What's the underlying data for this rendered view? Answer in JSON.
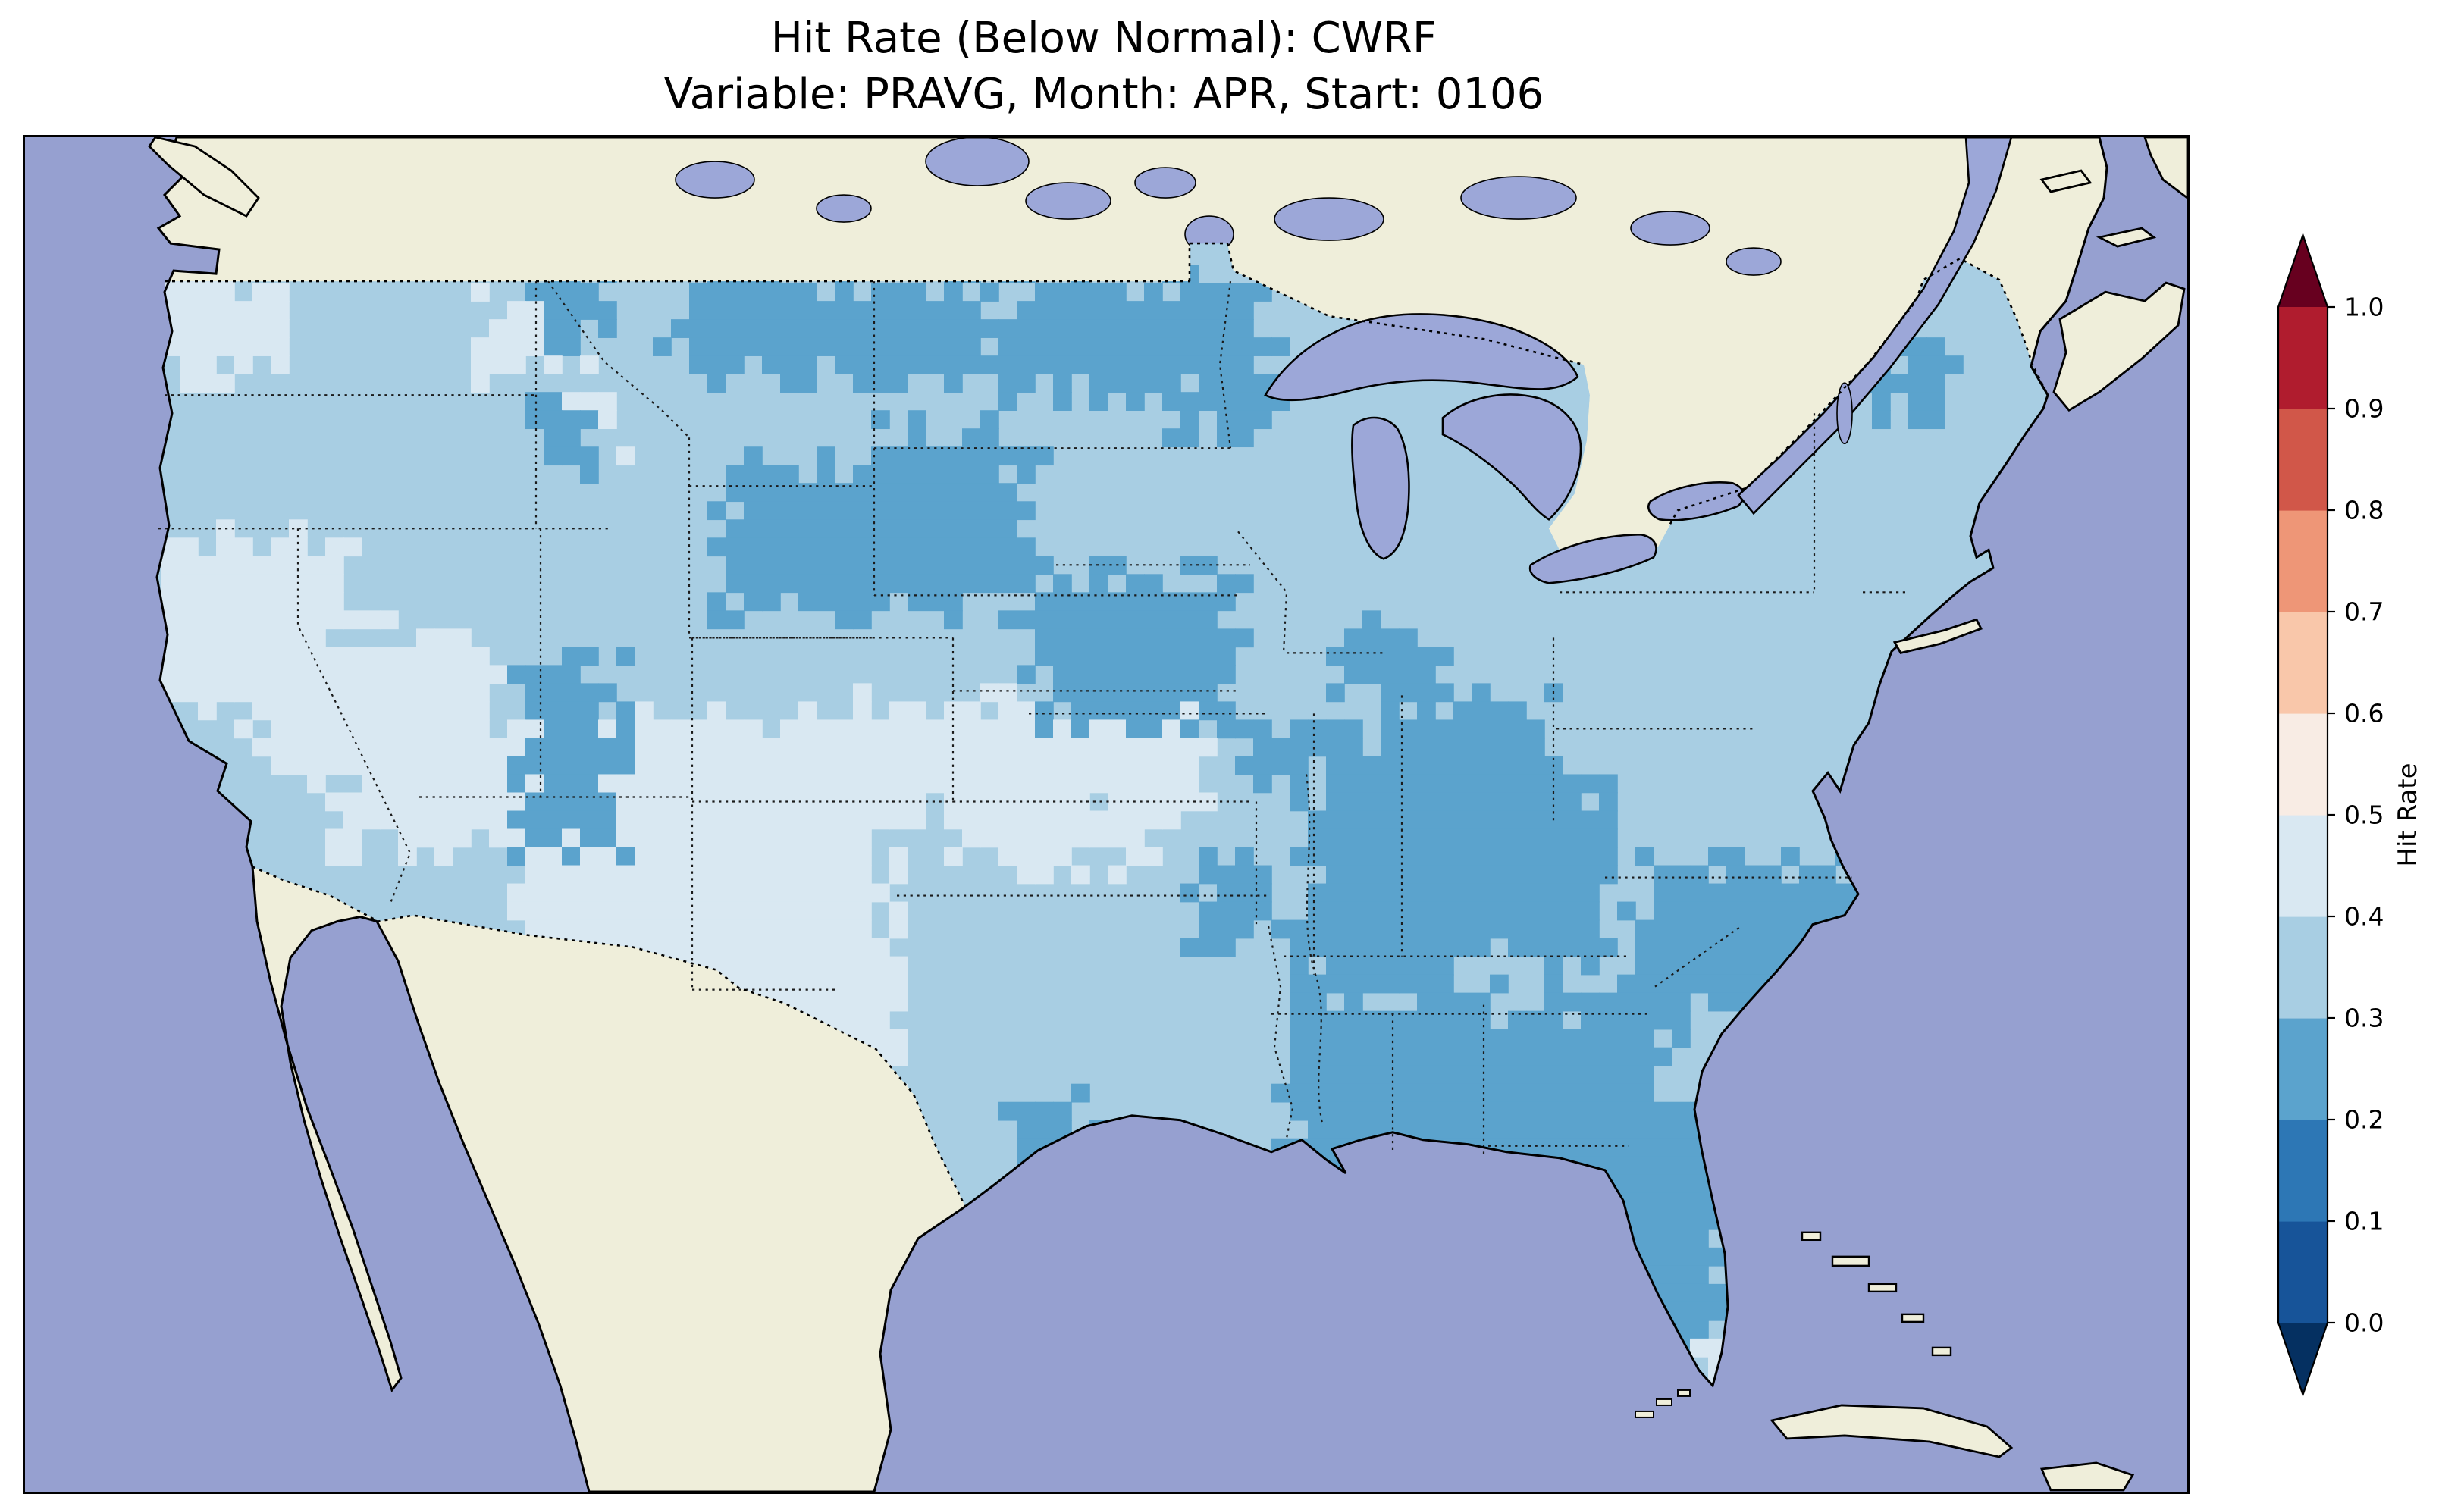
{
  "title": {
    "line1": "Hit Rate (Below Normal): CWRF",
    "line2": "Variable: PRAVG, Month: APR, Start: 0106"
  },
  "colorbar": {
    "label": "Hit Rate",
    "ticks": [
      "1.0",
      "0.9",
      "0.8",
      "0.7",
      "0.6",
      "0.5",
      "0.4",
      "0.3",
      "0.2",
      "0.1",
      "0.0"
    ]
  },
  "chart_data": {
    "type": "heatmap",
    "title": "Hit Rate (Below Normal): CWRF",
    "subtitle": "Variable: PRAVG, Month: APR, Start: 0106",
    "model": "CWRF",
    "variable": "PRAVG",
    "month": "APR",
    "start": "0106",
    "category": "Below Normal",
    "map": {
      "extent": "Contiguous United States with surrounding Canada, Mexico, oceans and Great Lakes",
      "ocean_color": "#96a0d0",
      "lake_color": "#9ca7d8",
      "land_color": "#efeeda",
      "coast_color": "#000000",
      "border_style": "dotted"
    },
    "colorbar": {
      "label": "Hit Rate",
      "levels": [
        0.0,
        0.1,
        0.2,
        0.3,
        0.4,
        0.5,
        0.6,
        0.7,
        0.8,
        0.9,
        1.0
      ],
      "extend": "both",
      "bins": [
        {
          "range": "<0.0",
          "color": "#053061"
        },
        {
          "range": "0.0-0.1",
          "color": "#175499"
        },
        {
          "range": "0.1-0.2",
          "color": "#2d77b5"
        },
        {
          "range": "0.2-0.3",
          "color": "#5ba3cd"
        },
        {
          "range": "0.3-0.4",
          "color": "#a8cee3"
        },
        {
          "range": "0.4-0.5",
          "color": "#d9e8f2"
        },
        {
          "range": "0.5-0.6",
          "color": "#f8ece4"
        },
        {
          "range": "0.6-0.7",
          "color": "#f9c7aa"
        },
        {
          "range": "0.7-0.8",
          "color": "#ee9677"
        },
        {
          "range": "0.8-0.9",
          "color": "#d15749"
        },
        {
          "range": "0.9-1.0",
          "color": "#b01c2e"
        },
        {
          "range": ">1.0",
          "color": "#67001f"
        }
      ]
    },
    "named_regions": [
      {
        "area": "Most of the contiguous US",
        "hit_rate_bin": "0.3-0.4"
      },
      {
        "area": "Western Washington coast, Great Basin (NV/UT), Four Corners (AZ/NM/CO/UT), central High Plains (NE/KS), west Texas",
        "hit_rate_bin": "0.4-0.5"
      },
      {
        "area": "Northern Montana-Dakotas border band, western Dakotas, Iowa, Colorado Rockies, Ohio Valley (IN/KY/OH/WV), Mississippi-Alabama-Georgia, Florida peninsula, Carolinas, northern Minnesota, northern New England",
        "hit_rate_bin": "0.2-0.3"
      }
    ],
    "grid": {
      "cell": 12,
      "base_value": 0.35,
      "regions": [
        [
          84,
          96,
          88,
          58,
          0.45
        ],
        [
          300,
          110,
          46,
          48,
          0.45
        ],
        [
          84,
          262,
          120,
          105,
          0.45
        ],
        [
          150,
          330,
          160,
          85,
          0.45
        ],
        [
          205,
          390,
          130,
          80,
          0.45
        ],
        [
          330,
          380,
          245,
          185,
          0.45
        ],
        [
          450,
          545,
          120,
          90,
          0.45
        ],
        [
          560,
          370,
          215,
          70,
          0.45
        ],
        [
          620,
          430,
          120,
          45,
          0.45
        ],
        [
          345,
          160,
          40,
          38,
          0.45
        ],
        [
          427,
          95,
          210,
          58,
          0.25
        ],
        [
          658,
          95,
          148,
          72,
          0.25
        ],
        [
          760,
          140,
          70,
          48,
          0.25
        ],
        [
          340,
          98,
          48,
          36,
          0.25
        ],
        [
          464,
          212,
          205,
          105,
          0.25
        ],
        [
          560,
          190,
          80,
          60,
          0.25
        ],
        [
          672,
          285,
          130,
          95,
          0.25
        ],
        [
          332,
          352,
          55,
          115,
          0.25
        ],
        [
          815,
          380,
          45,
          45,
          0.25
        ],
        [
          843,
          398,
          95,
          150,
          0.25
        ],
        [
          900,
          378,
          105,
          120,
          0.25
        ],
        [
          935,
          430,
          110,
          105,
          0.25
        ],
        [
          777,
          480,
          50,
          45,
          0.25
        ],
        [
          838,
          565,
          125,
          145,
          0.25
        ],
        [
          928,
          578,
          145,
          125,
          0.25
        ],
        [
          1010,
          560,
          75,
          90,
          0.25
        ],
        [
          1058,
          478,
          165,
          92,
          0.25
        ],
        [
          1021,
          645,
          100,
          175,
          0.25
        ],
        [
          337,
          178,
          34,
          34,
          0.25
        ],
        [
          148,
          518,
          36,
          36,
          0.25
        ],
        [
          650,
          640,
          48,
          32,
          0.25
        ],
        [
          1215,
          140,
          52,
          42,
          0.25
        ],
        [
          870,
          330,
          60,
          40,
          0.25
        ],
        [
          1088,
          795,
          34,
          22,
          0.45
        ]
      ]
    }
  }
}
